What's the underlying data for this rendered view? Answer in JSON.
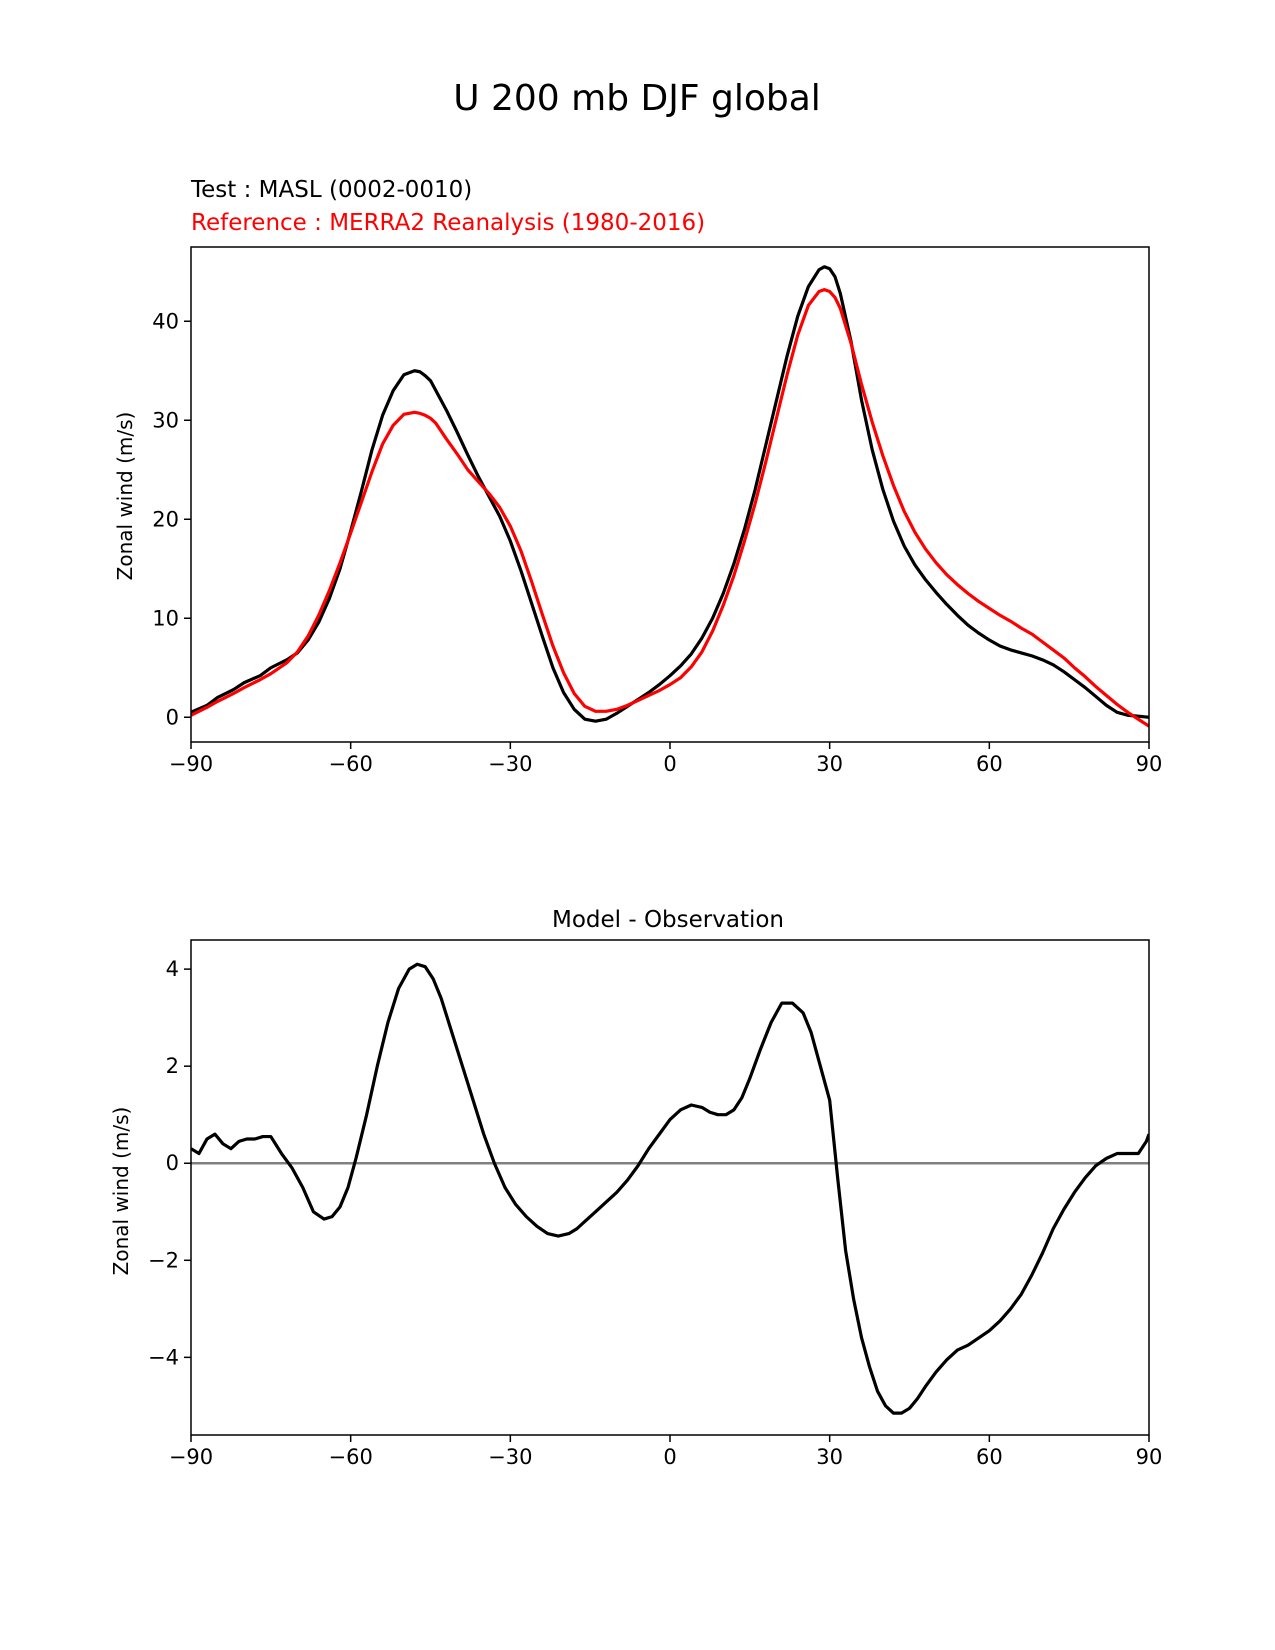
{
  "figure": {
    "title": "U 200 mb DJF global"
  },
  "chart_data": [
    {
      "type": "line",
      "test_label": "Test : MASL (0002-0010)",
      "reference_label": "Reference : MERRA2 Reanalysis (1980-2016)",
      "ylabel": "Zonal wind (m/s)",
      "xlabel": "",
      "xlim": [
        -90,
        90
      ],
      "ylim": [
        -2.5,
        47.5
      ],
      "xticks": [
        -90,
        -60,
        -30,
        0,
        30,
        60,
        90
      ],
      "xtick_labels": [
        "−90",
        "−60",
        "−30",
        "0",
        "30",
        "60",
        "90"
      ],
      "yticks": [
        0,
        10,
        20,
        30,
        40
      ],
      "ytick_labels": [
        "0",
        "10",
        "20",
        "30",
        "40"
      ],
      "grid": false,
      "series": [
        {
          "role": "test",
          "color": "#000000",
          "x": [
            -90,
            -87,
            -85,
            -82,
            -80,
            -77,
            -75,
            -72,
            -70,
            -68,
            -66,
            -64,
            -62,
            -60,
            -58,
            -56,
            -54,
            -52,
            -50,
            -48,
            -47,
            -46,
            -45,
            -44,
            -42,
            -40,
            -38,
            -36,
            -34,
            -32,
            -30,
            -28,
            -26,
            -24,
            -22,
            -20,
            -18,
            -16,
            -14,
            -12,
            -10,
            -8,
            -6,
            -4,
            -2,
            0,
            2,
            4,
            6,
            8,
            10,
            12,
            14,
            16,
            18,
            20,
            22,
            24,
            26,
            28,
            29,
            30,
            31,
            32,
            34,
            36,
            38,
            40,
            42,
            44,
            46,
            48,
            50,
            52,
            54,
            56,
            58,
            60,
            62,
            64,
            66,
            68,
            70,
            72,
            74,
            76,
            78,
            80,
            82,
            84,
            86,
            88,
            90
          ],
          "values": [
            0.5,
            1.2,
            2,
            2.8,
            3.5,
            4.2,
            5,
            5.8,
            6.5,
            7.8,
            9.6,
            12,
            15,
            18.8,
            22.8,
            27,
            30.5,
            33,
            34.6,
            35,
            34.9,
            34.5,
            34,
            33,
            31,
            28.8,
            26.5,
            24.3,
            22.3,
            20.3,
            17.8,
            14.8,
            11.5,
            8.2,
            5,
            2.5,
            0.8,
            -0.2,
            -0.4,
            -0.2,
            0.4,
            1.1,
            1.8,
            2.5,
            3.3,
            4.2,
            5.2,
            6.4,
            8,
            10,
            12.5,
            15.5,
            19,
            23,
            27.5,
            32,
            36.5,
            40.5,
            43.5,
            45.2,
            45.5,
            45.3,
            44.5,
            42.8,
            38,
            32,
            27,
            23,
            19.8,
            17.3,
            15.4,
            13.9,
            12.6,
            11.4,
            10.3,
            9.3,
            8.5,
            7.8,
            7.2,
            6.8,
            6.5,
            6.2,
            5.8,
            5.3,
            4.6,
            3.8,
            3,
            2.1,
            1.2,
            0.5,
            0.2,
            0.1,
            0
          ]
        },
        {
          "role": "reference",
          "color": "#ff0000",
          "x": [
            -90,
            -87,
            -85,
            -82,
            -80,
            -77,
            -75,
            -72,
            -70,
            -68,
            -66,
            -64,
            -62,
            -60,
            -58,
            -56,
            -54,
            -52,
            -50,
            -48,
            -47,
            -46,
            -45,
            -44,
            -42,
            -40,
            -38,
            -36,
            -34,
            -32,
            -30,
            -28,
            -26,
            -24,
            -22,
            -20,
            -18,
            -16,
            -14,
            -12,
            -10,
            -8,
            -6,
            -4,
            -2,
            0,
            2,
            4,
            6,
            8,
            10,
            12,
            14,
            16,
            18,
            20,
            22,
            24,
            26,
            28,
            29,
            30,
            31,
            32,
            34,
            36,
            38,
            40,
            42,
            44,
            46,
            48,
            50,
            52,
            54,
            56,
            58,
            60,
            62,
            64,
            66,
            68,
            70,
            72,
            74,
            76,
            78,
            80,
            82,
            84,
            86,
            88,
            90
          ],
          "values": [
            0.2,
            1,
            1.6,
            2.4,
            3,
            3.8,
            4.4,
            5.5,
            6.6,
            8.2,
            10.3,
            12.8,
            15.6,
            18.6,
            21.7,
            24.8,
            27.6,
            29.5,
            30.6,
            30.8,
            30.7,
            30.5,
            30.2,
            29.7,
            28.1,
            26.6,
            25,
            23.8,
            22.6,
            21.2,
            19.3,
            16.8,
            13.7,
            10.4,
            7.2,
            4.5,
            2.4,
            1.1,
            0.6,
            0.6,
            0.8,
            1.2,
            1.7,
            2.2,
            2.7,
            3.3,
            4,
            5.1,
            6.6,
            8.7,
            11.3,
            14.3,
            17.8,
            21.6,
            25.8,
            30.2,
            34.6,
            38.6,
            41.6,
            43,
            43.2,
            43,
            42.4,
            41.3,
            37.8,
            33.6,
            29.8,
            26.4,
            23.4,
            20.8,
            18.7,
            17,
            15.6,
            14.4,
            13.4,
            12.5,
            11.7,
            11,
            10.3,
            9.7,
            9,
            8.4,
            7.6,
            6.8,
            6,
            5,
            4.1,
            3.1,
            2.2,
            1.3,
            0.5,
            -0.2,
            -0.9
          ]
        }
      ]
    },
    {
      "type": "line",
      "title": "Model - Observation",
      "ylabel": "Zonal wind (m/s)",
      "xlabel": "",
      "xlim": [
        -90,
        90
      ],
      "ylim": [
        -5.6,
        4.6
      ],
      "xticks": [
        -90,
        -60,
        -30,
        0,
        30,
        60,
        90
      ],
      "xtick_labels": [
        "−90",
        "−60",
        "−30",
        "0",
        "30",
        "60",
        "90"
      ],
      "yticks": [
        -4,
        -2,
        0,
        2,
        4
      ],
      "ytick_labels": [
        "−4",
        "−2",
        "0",
        "2",
        "4"
      ],
      "grid": false,
      "zero_line": {
        "y": 0,
        "color": "#808080"
      },
      "series": [
        {
          "role": "difference",
          "color": "#000000",
          "x": [
            -90,
            -88.5,
            -87,
            -85.5,
            -84,
            -82.5,
            -81,
            -79.5,
            -78,
            -76.5,
            -75,
            -73,
            -71,
            -69,
            -67,
            -65,
            -63.5,
            -62,
            -60.5,
            -59,
            -57,
            -55,
            -53,
            -51,
            -49,
            -47.5,
            -46,
            -44.5,
            -43,
            -41,
            -39,
            -37,
            -35,
            -33,
            -31,
            -29,
            -27,
            -25,
            -23,
            -21,
            -19,
            -17.5,
            -16,
            -14,
            -12,
            -10,
            -8,
            -6,
            -4,
            -2,
            0,
            2,
            4,
            6,
            7.5,
            9,
            10.5,
            12,
            13.5,
            15,
            17,
            19,
            21,
            23,
            25,
            26.5,
            28,
            30,
            31.5,
            33,
            34.5,
            36,
            37.5,
            39,
            40.5,
            42,
            43.5,
            45,
            46.5,
            48,
            50,
            52,
            54,
            56,
            58,
            60,
            62,
            64,
            66,
            68,
            70,
            72,
            74,
            76,
            78,
            80,
            82,
            84,
            86,
            88,
            89.5,
            90
          ],
          "values": [
            0.3,
            0.2,
            0.5,
            0.6,
            0.4,
            0.3,
            0.45,
            0.5,
            0.5,
            0.55,
            0.55,
            0.2,
            -0.1,
            -0.5,
            -1,
            -1.15,
            -1.1,
            -0.9,
            -0.5,
            0.1,
            1,
            2,
            2.9,
            3.6,
            4,
            4.1,
            4.05,
            3.8,
            3.4,
            2.7,
            2,
            1.3,
            0.6,
            0,
            -0.5,
            -0.85,
            -1.1,
            -1.3,
            -1.45,
            -1.5,
            -1.45,
            -1.35,
            -1.2,
            -1,
            -0.8,
            -0.6,
            -0.35,
            -0.05,
            0.3,
            0.6,
            0.9,
            1.1,
            1.2,
            1.15,
            1.05,
            1,
            1,
            1.1,
            1.35,
            1.75,
            2.35,
            2.9,
            3.3,
            3.3,
            3.1,
            2.7,
            2.1,
            1.3,
            -0.3,
            -1.8,
            -2.8,
            -3.6,
            -4.2,
            -4.7,
            -5,
            -5.15,
            -5.15,
            -5.05,
            -4.85,
            -4.6,
            -4.3,
            -4.05,
            -3.85,
            -3.75,
            -3.6,
            -3.45,
            -3.25,
            -3,
            -2.7,
            -2.3,
            -1.85,
            -1.35,
            -0.95,
            -0.6,
            -0.3,
            -0.05,
            0.1,
            0.2,
            0.2,
            0.2,
            0.45,
            0.6
          ]
        }
      ]
    }
  ]
}
